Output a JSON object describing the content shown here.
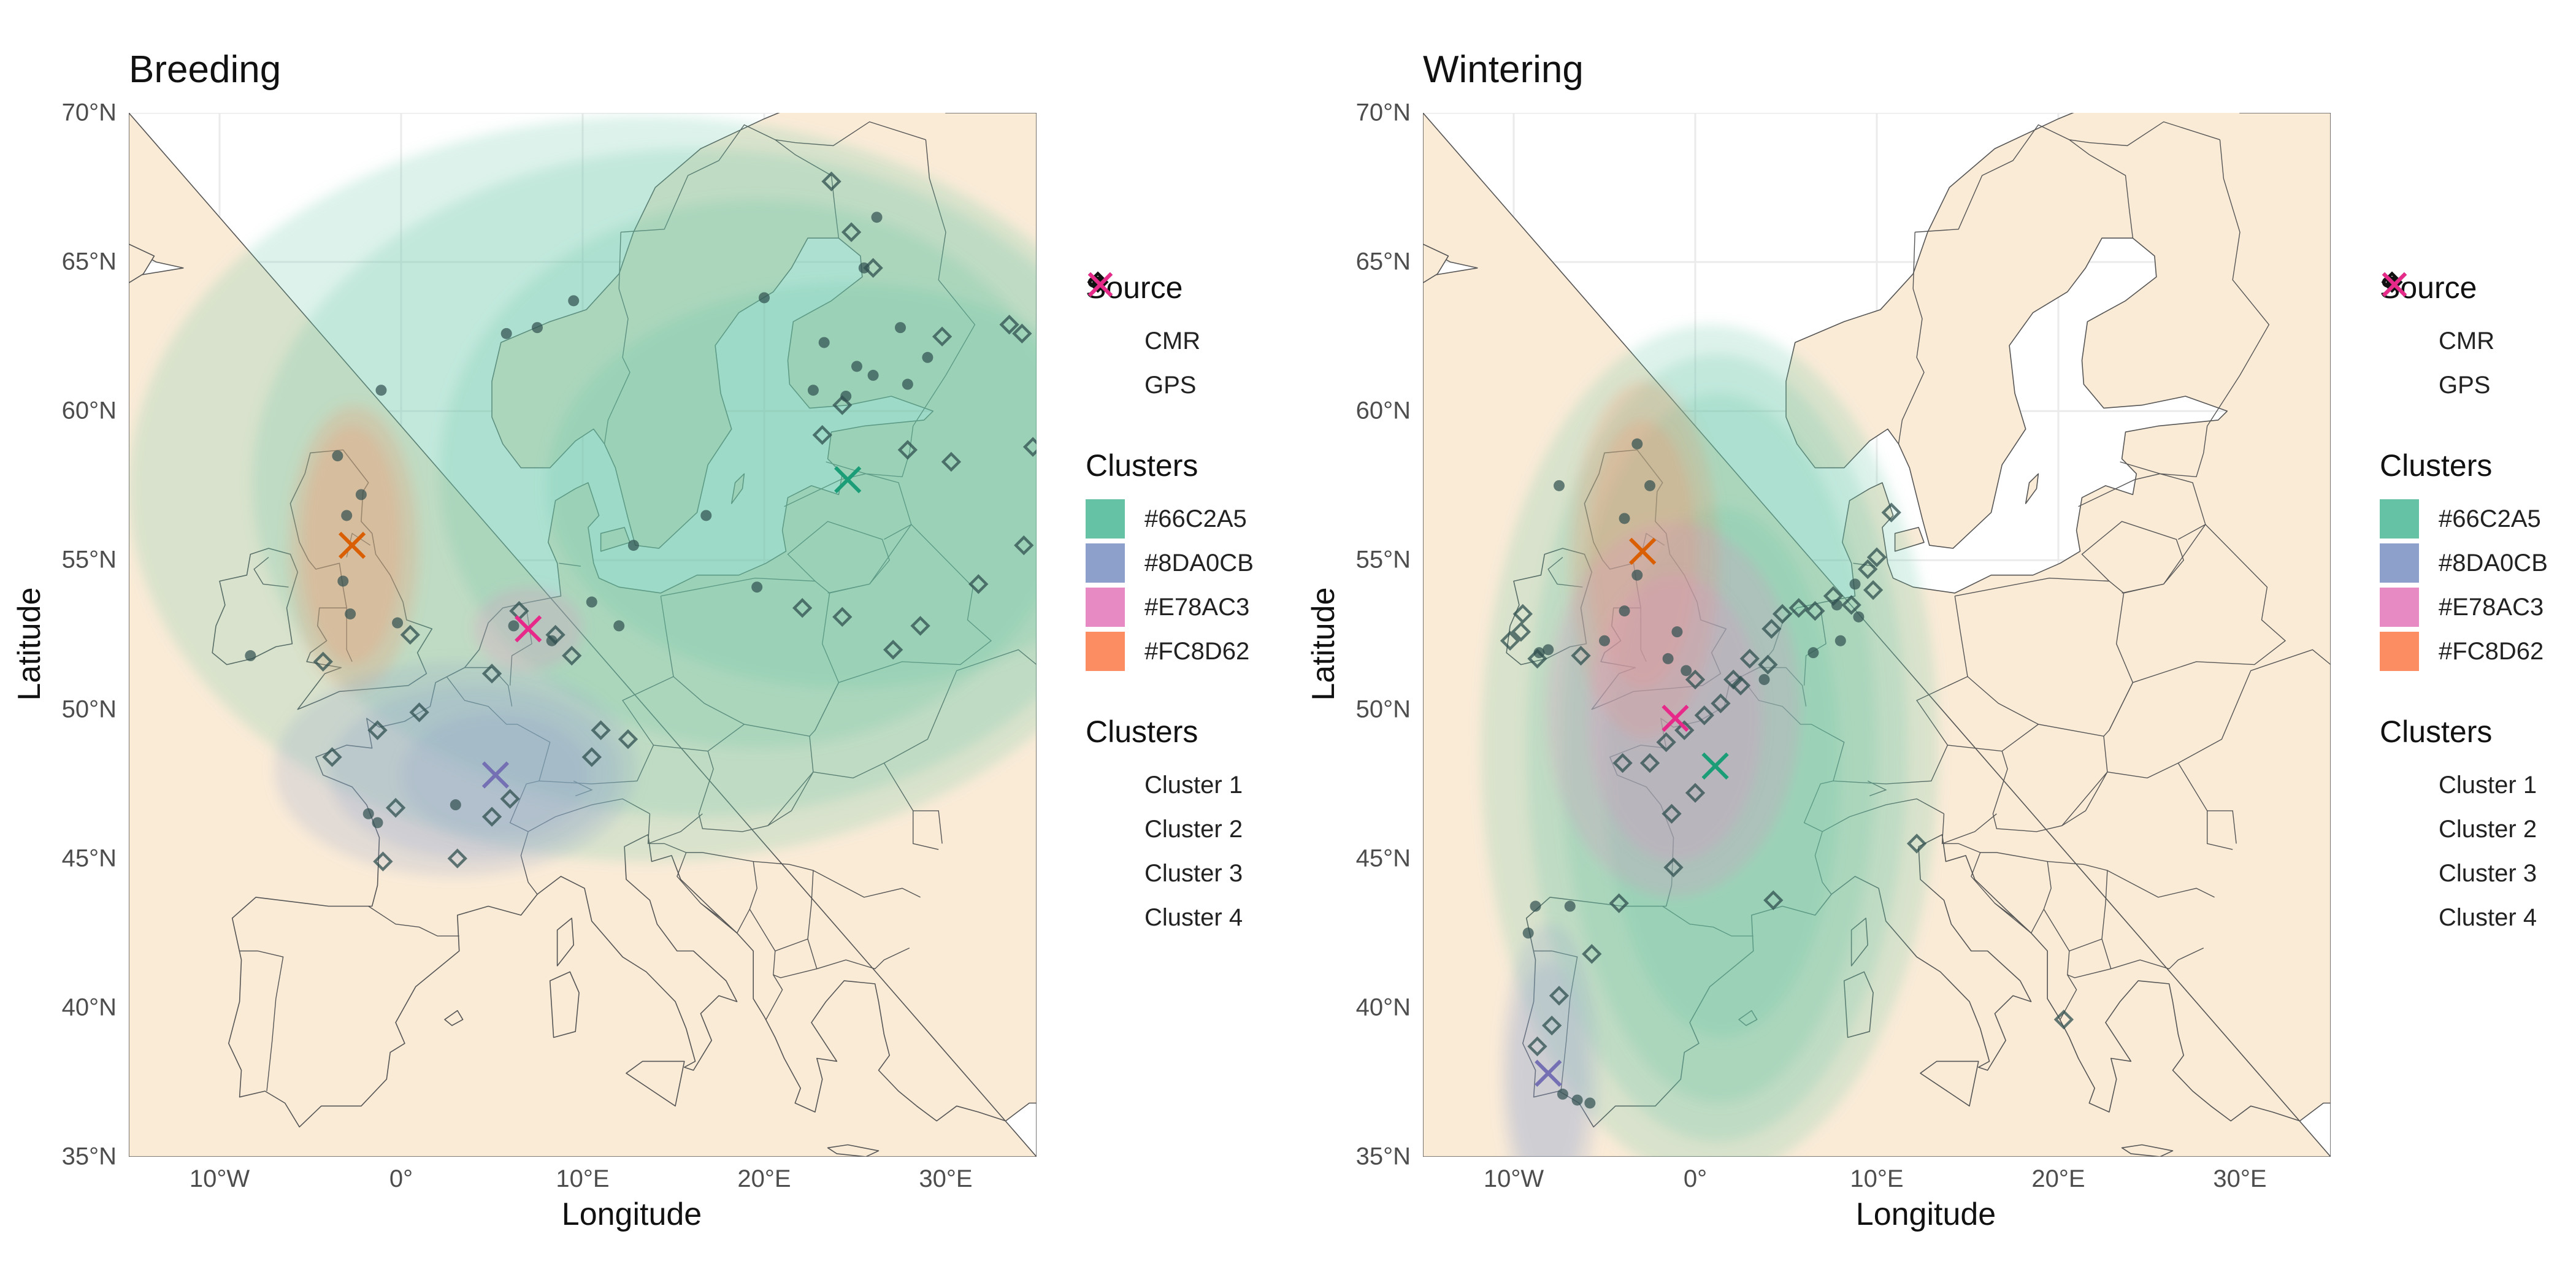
{
  "panels": [
    {
      "title": "Breeding",
      "xlabel": "Longitude",
      "ylabel": "Latitude",
      "x_ticks": [
        "10°W",
        "0°",
        "10°E",
        "20°E",
        "30°E"
      ],
      "y_ticks": [
        "70°N",
        "65°N",
        "60°N",
        "55°N",
        "50°N",
        "45°N",
        "40°N",
        "35°N"
      ]
    },
    {
      "title": "Wintering",
      "xlabel": "Longitude",
      "ylabel": "Latitude",
      "x_ticks": [
        "10°W",
        "0°",
        "10°E",
        "20°E",
        "30°E"
      ],
      "y_ticks": [
        "70°N",
        "65°N",
        "60°N",
        "55°N",
        "50°N",
        "45°N",
        "40°N",
        "35°N"
      ]
    }
  ],
  "legend": {
    "source_title": "Source",
    "source_items": [
      {
        "label": "CMR",
        "shape": "filled-circle"
      },
      {
        "label": "GPS",
        "shape": "open-diamond"
      }
    ],
    "fill_title": "Clusters",
    "fill_items": [
      {
        "label": "#66C2A5",
        "color": "#66C2A5"
      },
      {
        "label": "#8DA0CB",
        "color": "#8DA0CB"
      },
      {
        "label": "#E78AC3",
        "color": "#E78AC3"
      },
      {
        "label": "#FC8D62",
        "color": "#FC8D62"
      }
    ],
    "centroid_title": "Clusters",
    "centroid_items": [
      {
        "label": "Cluster 1",
        "color": "#1B9E77"
      },
      {
        "label": "Cluster 2",
        "color": "#D95F02"
      },
      {
        "label": "Cluster 3",
        "color": "#7570B3"
      },
      {
        "label": "Cluster 4",
        "color": "#E7298A"
      }
    ]
  },
  "colors": {
    "land": "#FAEBD7",
    "sea": "#FFFFFF",
    "grid": "#EBEBEB",
    "point": "#2F4F4F"
  },
  "map_extent": {
    "lon": [
      -15,
      35
    ],
    "lat": [
      35,
      70
    ]
  },
  "chart_data": [
    {
      "type": "map",
      "title": "Breeding",
      "xlabel": "Longitude",
      "ylabel": "Latitude",
      "xlim": [
        -15,
        35
      ],
      "ylim": [
        35,
        70
      ],
      "centroids": [
        {
          "cluster": "Cluster 1",
          "lon": 24.6,
          "lat": 57.7
        },
        {
          "cluster": "Cluster 2",
          "lon": -2.7,
          "lat": 55.5
        },
        {
          "cluster": "Cluster 3",
          "lon": 5.2,
          "lat": 47.8
        },
        {
          "cluster": "Cluster 4",
          "lon": 7.0,
          "lat": 52.7
        }
      ],
      "ellipses": [
        {
          "fill": "#66C2A5",
          "lon": 13.5,
          "lat": 57.4,
          "rx": 28.5,
          "ry": 12.5
        },
        {
          "fill": "#66C2A5",
          "lon": 16.3,
          "lat": 57.6,
          "rx": 24.5,
          "ry": 11.2
        },
        {
          "fill": "#66C2A5",
          "lon": 19.6,
          "lat": 57.9,
          "rx": 17.5,
          "ry": 9.2
        },
        {
          "fill": "#66C2A5",
          "lon": 24.5,
          "lat": 57.5,
          "rx": 16.5,
          "ry": 6.8
        },
        {
          "fill": "#FC8D62",
          "lon": -2.6,
          "lat": 55.4,
          "rx": 3.6,
          "ry": 4.8
        },
        {
          "fill": "#FC8D62",
          "lon": -2.7,
          "lat": 55.5,
          "rx": 2.7,
          "ry": 4.0
        },
        {
          "fill": "#8DA0CB",
          "lon": 3.0,
          "lat": 48.0,
          "rx": 10.0,
          "ry": 3.6
        },
        {
          "fill": "#8DA0CB",
          "lon": 4.0,
          "lat": 47.9,
          "rx": 8.0,
          "ry": 2.9
        },
        {
          "fill": "#8DA0CB",
          "lon": 5.2,
          "lat": 47.8,
          "rx": 5.2,
          "ry": 2.1
        },
        {
          "fill": "#E78AC3",
          "lon": 7.0,
          "lat": 52.7,
          "rx": 3.0,
          "ry": 1.4
        }
      ],
      "points": [
        {
          "lon": 24.5,
          "lat": 60.5,
          "source": "CMR"
        },
        {
          "lon": 26.0,
          "lat": 61.2,
          "source": "CMR"
        },
        {
          "lon": 27.5,
          "lat": 62.8,
          "source": "CMR"
        },
        {
          "lon": 23.3,
          "lat": 62.3,
          "source": "CMR"
        },
        {
          "lon": 22.7,
          "lat": 60.7,
          "source": "CMR"
        },
        {
          "lon": 25.5,
          "lat": 64.8,
          "source": "CMR"
        },
        {
          "lon": 26.2,
          "lat": 66.5,
          "source": "CMR"
        },
        {
          "lon": 20.0,
          "lat": 63.8,
          "source": "CMR"
        },
        {
          "lon": 16.8,
          "lat": 56.5,
          "source": "CMR"
        },
        {
          "lon": 12.8,
          "lat": 55.5,
          "source": "CMR"
        },
        {
          "lon": 10.5,
          "lat": 53.6,
          "source": "CMR"
        },
        {
          "lon": 12.0,
          "lat": 52.8,
          "source": "CMR"
        },
        {
          "lon": 19.6,
          "lat": 54.1,
          "source": "CMR"
        },
        {
          "lon": 7.5,
          "lat": 62.8,
          "source": "CMR"
        },
        {
          "lon": 5.8,
          "lat": 62.6,
          "source": "CMR"
        },
        {
          "lon": 9.5,
          "lat": 63.7,
          "source": "CMR"
        },
        {
          "lon": -1.1,
          "lat": 60.7,
          "source": "CMR"
        },
        {
          "lon": -8.3,
          "lat": 51.8,
          "source": "CMR"
        },
        {
          "lon": -3.5,
          "lat": 58.5,
          "source": "CMR"
        },
        {
          "lon": -3.0,
          "lat": 56.5,
          "source": "CMR"
        },
        {
          "lon": -2.2,
          "lat": 57.2,
          "source": "CMR"
        },
        {
          "lon": -3.2,
          "lat": 54.3,
          "source": "CMR"
        },
        {
          "lon": -2.8,
          "lat": 53.2,
          "source": "CMR"
        },
        {
          "lon": -0.2,
          "lat": 52.9,
          "source": "CMR"
        },
        {
          "lon": -1.3,
          "lat": 46.2,
          "source": "CMR"
        },
        {
          "lon": -1.8,
          "lat": 46.5,
          "source": "CMR"
        },
        {
          "lon": 3.0,
          "lat": 46.8,
          "source": "CMR"
        },
        {
          "lon": 6.2,
          "lat": 52.8,
          "source": "CMR"
        },
        {
          "lon": 8.3,
          "lat": 52.3,
          "source": "CMR"
        },
        {
          "lon": 27.9,
          "lat": 60.9,
          "source": "CMR"
        },
        {
          "lon": 25.1,
          "lat": 61.5,
          "source": "CMR"
        },
        {
          "lon": 29.0,
          "lat": 61.8,
          "source": "CMR"
        },
        {
          "lon": 23.7,
          "lat": 67.7,
          "source": "GPS"
        },
        {
          "lon": 27.9,
          "lat": 58.7,
          "source": "GPS"
        },
        {
          "lon": 30.3,
          "lat": 58.3,
          "source": "GPS"
        },
        {
          "lon": 34.8,
          "lat": 58.8,
          "source": "GPS"
        },
        {
          "lon": 34.3,
          "lat": 55.5,
          "source": "GPS"
        },
        {
          "lon": 31.8,
          "lat": 54.2,
          "source": "GPS"
        },
        {
          "lon": 28.6,
          "lat": 52.8,
          "source": "GPS"
        },
        {
          "lon": 27.1,
          "lat": 52.0,
          "source": "GPS"
        },
        {
          "lon": 24.3,
          "lat": 53.1,
          "source": "GPS"
        },
        {
          "lon": 22.1,
          "lat": 53.4,
          "source": "GPS"
        },
        {
          "lon": 33.5,
          "lat": 62.9,
          "source": "GPS"
        },
        {
          "lon": 34.2,
          "lat": 62.6,
          "source": "GPS"
        },
        {
          "lon": 29.8,
          "lat": 62.5,
          "source": "GPS"
        },
        {
          "lon": 26.0,
          "lat": 64.8,
          "source": "GPS"
        },
        {
          "lon": 24.8,
          "lat": 66.0,
          "source": "GPS"
        },
        {
          "lon": 24.3,
          "lat": 60.2,
          "source": "GPS"
        },
        {
          "lon": 23.2,
          "lat": 59.2,
          "source": "GPS"
        },
        {
          "lon": 8.5,
          "lat": 52.5,
          "source": "GPS"
        },
        {
          "lon": 6.5,
          "lat": 53.3,
          "source": "GPS"
        },
        {
          "lon": 10.5,
          "lat": 48.4,
          "source": "GPS"
        },
        {
          "lon": 12.5,
          "lat": 49.0,
          "source": "GPS"
        },
        {
          "lon": 11.0,
          "lat": 49.3,
          "source": "GPS"
        },
        {
          "lon": 5.0,
          "lat": 46.4,
          "source": "GPS"
        },
        {
          "lon": 3.1,
          "lat": 45.0,
          "source": "GPS"
        },
        {
          "lon": -1.0,
          "lat": 44.9,
          "source": "GPS"
        },
        {
          "lon": -0.3,
          "lat": 46.7,
          "source": "GPS"
        },
        {
          "lon": -3.8,
          "lat": 48.4,
          "source": "GPS"
        },
        {
          "lon": -1.3,
          "lat": 49.3,
          "source": "GPS"
        },
        {
          "lon": 1.0,
          "lat": 49.9,
          "source": "GPS"
        },
        {
          "lon": 5.0,
          "lat": 51.2,
          "source": "GPS"
        },
        {
          "lon": 0.5,
          "lat": 52.5,
          "source": "GPS"
        },
        {
          "lon": -4.3,
          "lat": 51.6,
          "source": "GPS"
        },
        {
          "lon": 9.4,
          "lat": 51.8,
          "source": "GPS"
        },
        {
          "lon": 6.0,
          "lat": 47.0,
          "source": "GPS"
        }
      ]
    },
    {
      "type": "map",
      "title": "Wintering",
      "xlabel": "Longitude",
      "ylabel": "Latitude",
      "xlim": [
        -15,
        35
      ],
      "ylim": [
        35,
        70
      ],
      "centroids": [
        {
          "cluster": "Cluster 1",
          "lon": 1.1,
          "lat": 48.1
        },
        {
          "cluster": "Cluster 2",
          "lon": -2.9,
          "lat": 55.3
        },
        {
          "cluster": "Cluster 3",
          "lon": -8.1,
          "lat": 37.8
        },
        {
          "cluster": "Cluster 4",
          "lon": -1.1,
          "lat": 49.7
        }
      ],
      "ellipses": [
        {
          "fill": "#66C2A5",
          "lon": 0.8,
          "lat": 48.6,
          "rx": 12.6,
          "ry": 14.3
        },
        {
          "fill": "#66C2A5",
          "lon": 1.2,
          "lat": 48.7,
          "rx": 10.5,
          "ry": 13.2
        },
        {
          "fill": "#66C2A5",
          "lon": 1.3,
          "lat": 48.7,
          "rx": 8.7,
          "ry": 11.9
        },
        {
          "fill": "#66C2A5",
          "lon": 1.5,
          "lat": 47.9,
          "rx": 6.5,
          "ry": 8.9
        },
        {
          "fill": "#FC8D62",
          "lon": -2.8,
          "lat": 55.0,
          "rx": 4.1,
          "ry": 6.0
        },
        {
          "fill": "#FC8D62",
          "lon": -2.9,
          "lat": 55.2,
          "rx": 3.0,
          "ry": 4.5
        },
        {
          "fill": "#8DA0CB",
          "lon": -8.0,
          "lat": 37.8,
          "rx": 2.7,
          "ry": 5.0
        },
        {
          "fill": "#8DA0CB",
          "lon": -8.1,
          "lat": 37.7,
          "rx": 2.1,
          "ry": 3.8
        },
        {
          "fill": "#E78AC3",
          "lon": -1.2,
          "lat": 50.0,
          "rx": 7.0,
          "ry": 6.3
        },
        {
          "fill": "#E78AC3",
          "lon": -1.1,
          "lat": 49.7,
          "rx": 4.8,
          "ry": 4.8
        }
      ],
      "points": [
        {
          "lon": -7.5,
          "lat": 57.5,
          "source": "CMR"
        },
        {
          "lon": -3.2,
          "lat": 58.9,
          "source": "CMR"
        },
        {
          "lon": -3.9,
          "lat": 56.4,
          "source": "CMR"
        },
        {
          "lon": -2.5,
          "lat": 57.5,
          "source": "CMR"
        },
        {
          "lon": -3.2,
          "lat": 54.5,
          "source": "CMR"
        },
        {
          "lon": -3.9,
          "lat": 53.3,
          "source": "CMR"
        },
        {
          "lon": -8.1,
          "lat": 52.0,
          "source": "CMR"
        },
        {
          "lon": -8.6,
          "lat": 51.9,
          "source": "CMR"
        },
        {
          "lon": -5.0,
          "lat": 52.3,
          "source": "CMR"
        },
        {
          "lon": -1.0,
          "lat": 52.6,
          "source": "CMR"
        },
        {
          "lon": -1.5,
          "lat": 51.7,
          "source": "CMR"
        },
        {
          "lon": -0.5,
          "lat": 51.3,
          "source": "CMR"
        },
        {
          "lon": 3.8,
          "lat": 51.0,
          "source": "CMR"
        },
        {
          "lon": 6.5,
          "lat": 51.9,
          "source": "CMR"
        },
        {
          "lon": 7.8,
          "lat": 53.5,
          "source": "CMR"
        },
        {
          "lon": 8.8,
          "lat": 54.2,
          "source": "CMR"
        },
        {
          "lon": 9.0,
          "lat": 53.1,
          "source": "CMR"
        },
        {
          "lon": 8.0,
          "lat": 52.3,
          "source": "CMR"
        },
        {
          "lon": -8.8,
          "lat": 43.4,
          "source": "CMR"
        },
        {
          "lon": -9.2,
          "lat": 42.5,
          "source": "CMR"
        },
        {
          "lon": -6.9,
          "lat": 43.4,
          "source": "CMR"
        },
        {
          "lon": -6.5,
          "lat": 36.9,
          "source": "CMR"
        },
        {
          "lon": -7.3,
          "lat": 37.1,
          "source": "CMR"
        },
        {
          "lon": -5.8,
          "lat": 36.8,
          "source": "CMR"
        },
        {
          "lon": 10.0,
          "lat": 55.1,
          "source": "GPS"
        },
        {
          "lon": 9.5,
          "lat": 54.7,
          "source": "GPS"
        },
        {
          "lon": 9.8,
          "lat": 54.0,
          "source": "GPS"
        },
        {
          "lon": 8.6,
          "lat": 53.5,
          "source": "GPS"
        },
        {
          "lon": 7.6,
          "lat": 53.8,
          "source": "GPS"
        },
        {
          "lon": 6.6,
          "lat": 53.3,
          "source": "GPS"
        },
        {
          "lon": 5.7,
          "lat": 53.4,
          "source": "GPS"
        },
        {
          "lon": 4.8,
          "lat": 53.2,
          "source": "GPS"
        },
        {
          "lon": 4.2,
          "lat": 52.7,
          "source": "GPS"
        },
        {
          "lon": 3.0,
          "lat": 51.7,
          "source": "GPS"
        },
        {
          "lon": 2.1,
          "lat": 51.0,
          "source": "GPS"
        },
        {
          "lon": 1.4,
          "lat": 50.2,
          "source": "GPS"
        },
        {
          "lon": 0.5,
          "lat": 49.8,
          "source": "GPS"
        },
        {
          "lon": -0.6,
          "lat": 49.3,
          "source": "GPS"
        },
        {
          "lon": -1.6,
          "lat": 48.9,
          "source": "GPS"
        },
        {
          "lon": -2.5,
          "lat": 48.2,
          "source": "GPS"
        },
        {
          "lon": 0.0,
          "lat": 47.2,
          "source": "GPS"
        },
        {
          "lon": -1.3,
          "lat": 46.5,
          "source": "GPS"
        },
        {
          "lon": -1.2,
          "lat": 44.7,
          "source": "GPS"
        },
        {
          "lon": -4.0,
          "lat": 48.2,
          "source": "GPS"
        },
        {
          "lon": -9.5,
          "lat": 53.2,
          "source": "GPS"
        },
        {
          "lon": -9.6,
          "lat": 52.6,
          "source": "GPS"
        },
        {
          "lon": -10.2,
          "lat": 52.3,
          "source": "GPS"
        },
        {
          "lon": -8.7,
          "lat": 51.7,
          "source": "GPS"
        },
        {
          "lon": -6.3,
          "lat": 51.8,
          "source": "GPS"
        },
        {
          "lon": -4.2,
          "lat": 43.5,
          "source": "GPS"
        },
        {
          "lon": -5.7,
          "lat": 41.8,
          "source": "GPS"
        },
        {
          "lon": -7.5,
          "lat": 40.4,
          "source": "GPS"
        },
        {
          "lon": -8.7,
          "lat": 38.7,
          "source": "GPS"
        },
        {
          "lon": -7.9,
          "lat": 39.4,
          "source": "GPS"
        },
        {
          "lon": 4.3,
          "lat": 43.6,
          "source": "GPS"
        },
        {
          "lon": 10.8,
          "lat": 56.6,
          "source": "GPS"
        },
        {
          "lon": 12.2,
          "lat": 45.5,
          "source": "GPS"
        },
        {
          "lon": 20.3,
          "lat": 39.6,
          "source": "GPS"
        },
        {
          "lon": 4.0,
          "lat": 51.5,
          "source": "GPS"
        },
        {
          "lon": 2.5,
          "lat": 50.8,
          "source": "GPS"
        },
        {
          "lon": 0.0,
          "lat": 51.0,
          "source": "GPS"
        }
      ]
    }
  ]
}
